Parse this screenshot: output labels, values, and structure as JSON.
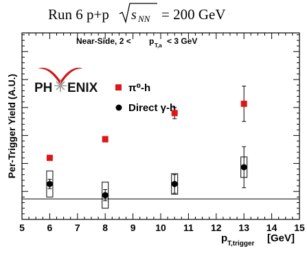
{
  "header": {
    "title_prefix": "Run 6 p+p",
    "title_sqrt_var": "s",
    "title_sqrt_sub": "NN",
    "title_suffix": "= 200 GeV"
  },
  "logo": {
    "text_left": "PH",
    "text_right": "ENIX"
  },
  "chart_data": {
    "type": "scatter",
    "annotation": {
      "prefix": "Near-Side, 2 <",
      "var": "p",
      "sub": "T,a",
      "suffix": "< 3 GeV"
    },
    "ylabel": "Per-Trigger Yield (A.U.)",
    "xlabel": {
      "main": "p",
      "sub": "T,trigger",
      "unit": "[GeV]"
    },
    "xlim": [
      5,
      15
    ],
    "ylim": [
      0,
      1
    ],
    "xticks": [
      "5",
      "6",
      "7",
      "8",
      "9",
      "10",
      "11",
      "12",
      "13",
      "14",
      "15"
    ],
    "baseline_y": 0.11,
    "series": [
      {
        "name": "π⁰-h",
        "color": "#e01616",
        "marker": "square",
        "x": [
          6,
          8,
          10.5,
          13
        ],
        "y": [
          0.33,
          0.43,
          0.57,
          0.62
        ],
        "yerr": [
          0.007,
          0.015,
          0.03,
          0.095
        ]
      },
      {
        "name": "Direct γ-h",
        "color": "#000000",
        "marker": "circle",
        "x": [
          6,
          8,
          10.5,
          13
        ],
        "y": [
          0.19,
          0.13,
          0.19,
          0.28
        ],
        "yerr": [
          0.025,
          0.03,
          0.05,
          0.11
        ],
        "sys_err": [
          0.07,
          0.07,
          0.055,
          0.055
        ]
      }
    ]
  }
}
